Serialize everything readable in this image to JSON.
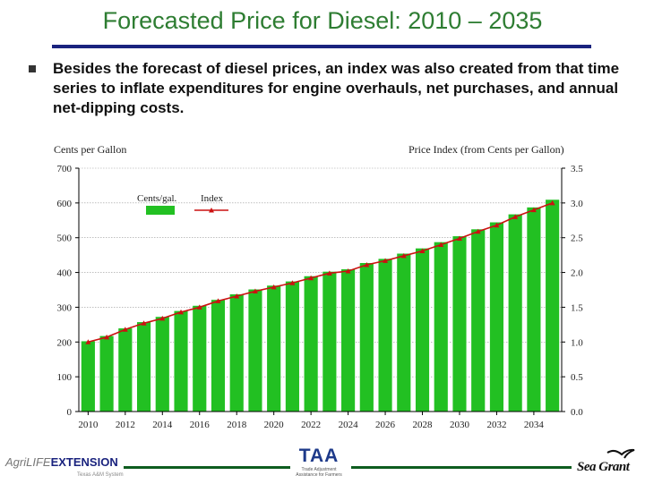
{
  "slide": {
    "title": "Forecasted Price for Diesel: 2010 – 2035",
    "bullet_text": "Besides the forecast of diesel prices, an index was also created from that time series to inflate expenditures for engine overhauls, net purchases, and annual net-dipping costs."
  },
  "colors": {
    "title": "#2e7d32",
    "rule": "#1a237e",
    "bar": "#22c022",
    "line": "#cc1111",
    "footer_rule": "#0d5c1f"
  },
  "footer": {
    "left_logo_part1": "AgriLIFE",
    "left_logo_part2": "EXTENSION",
    "left_logo_sub": "Texas A&M System",
    "mid_logo": "TAA",
    "mid_logo_sub": "Trade Adjustment Assistance for Farmers",
    "right_logo": "Sea Grant"
  },
  "chart_data": {
    "type": "bar",
    "left_axis_title": "Cents per Gallon",
    "right_axis_title": "Price Index (from Cents per Gallon)",
    "legend": {
      "bar_label": "Cents/gal.",
      "line_label": "Index"
    },
    "ylim": [
      0,
      700
    ],
    "y2lim": [
      0,
      3.5
    ],
    "y_ticks": [
      "0",
      "100",
      "200",
      "300",
      "400",
      "500",
      "600",
      "700"
    ],
    "y2_ticks": [
      "0.0",
      "0.5",
      "1.0",
      "1.5",
      "2.0",
      "2.5",
      "3.0",
      "3.5"
    ],
    "x_tick_labels": [
      "2010",
      "2012",
      "2014",
      "2016",
      "2018",
      "2020",
      "2022",
      "2024",
      "2026",
      "2028",
      "2030",
      "2032",
      "2034"
    ],
    "x_tick_label_years": [
      2010,
      2012,
      2014,
      2016,
      2018,
      2020,
      2022,
      2024,
      2026,
      2028,
      2030,
      2032,
      2034
    ],
    "categories": [
      2010,
      2011,
      2012,
      2013,
      2014,
      2015,
      2016,
      2017,
      2018,
      2019,
      2020,
      2021,
      2022,
      2023,
      2024,
      2025,
      2026,
      2027,
      2028,
      2029,
      2030,
      2031,
      2032,
      2033,
      2034,
      2035
    ],
    "series": [
      {
        "name": "Cents/gal.",
        "type": "bar",
        "axis": "left",
        "values": [
          203,
          218,
          240,
          258,
          273,
          290,
          305,
          322,
          338,
          352,
          363,
          375,
          390,
          403,
          410,
          428,
          440,
          455,
          470,
          488,
          505,
          525,
          545,
          568,
          588,
          610
        ]
      },
      {
        "name": "Index",
        "type": "line",
        "axis": "right",
        "values": [
          1.0,
          1.07,
          1.18,
          1.27,
          1.34,
          1.43,
          1.5,
          1.59,
          1.66,
          1.73,
          1.79,
          1.85,
          1.92,
          1.99,
          2.02,
          2.11,
          2.17,
          2.24,
          2.31,
          2.4,
          2.49,
          2.59,
          2.68,
          2.8,
          2.9,
          3.0
        ]
      }
    ],
    "grid": true
  }
}
